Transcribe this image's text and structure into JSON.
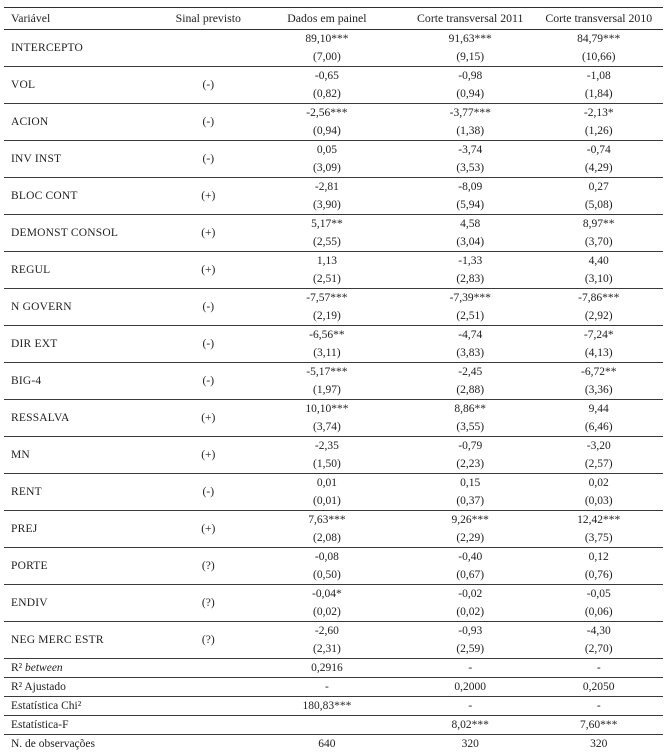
{
  "table": {
    "columns": [
      "Variável",
      "Sinal previsto",
      "Dados em painel",
      "Corte transversal 2011",
      "Corte transversal 2010"
    ],
    "variable_rows": [
      {
        "name": "INTERCEPTO",
        "sign": "",
        "cells": [
          {
            "coef": "89,10***",
            "se": "(7,00)"
          },
          {
            "coef": "91,63***",
            "se": "(9,15)"
          },
          {
            "coef": "84,79***",
            "se": "(10,66)"
          }
        ]
      },
      {
        "name": "VOL",
        "sign": "(-)",
        "cells": [
          {
            "coef": "-0,65",
            "se": "(0,82)"
          },
          {
            "coef": "-0,98",
            "se": "(0,94)"
          },
          {
            "coef": "-1,08",
            "se": "(1,84)"
          }
        ]
      },
      {
        "name": "ACION",
        "sign": "(-)",
        "cells": [
          {
            "coef": "-2,56***",
            "se": "(0,94)"
          },
          {
            "coef": "-3,77***",
            "se": "(1,38)"
          },
          {
            "coef": "-2,13*",
            "se": "(1,26)"
          }
        ]
      },
      {
        "name": "INV INST",
        "sign": "(-)",
        "cells": [
          {
            "coef": "0,05",
            "se": "(3,09)"
          },
          {
            "coef": "-3,74",
            "se": "(3,53)"
          },
          {
            "coef": "-0,74",
            "se": "(4,29)"
          }
        ]
      },
      {
        "name": "BLOC CONT",
        "sign": "(+)",
        "cells": [
          {
            "coef": "-2,81",
            "se": "(3,90)"
          },
          {
            "coef": "-8,09",
            "se": "(5,94)"
          },
          {
            "coef": "0,27",
            "se": "(5,08)"
          }
        ]
      },
      {
        "name": "DEMONST CONSOL",
        "sign": "(+)",
        "cells": [
          {
            "coef": "5,17**",
            "se": "(2,55)"
          },
          {
            "coef": "4,58",
            "se": "(3,04)"
          },
          {
            "coef": "8,97**",
            "se": "(3,70)"
          }
        ]
      },
      {
        "name": "REGUL",
        "sign": "(+)",
        "cells": [
          {
            "coef": "1,13",
            "se": "(2,51)"
          },
          {
            "coef": "-1,33",
            "se": "(2,83)"
          },
          {
            "coef": "4,40",
            "se": "(3,10)"
          }
        ]
      },
      {
        "name": "N GOVERN",
        "sign": "(-)",
        "cells": [
          {
            "coef": "-7,57***",
            "se": "(2,19)"
          },
          {
            "coef": "-7,39***",
            "se": "(2,51)"
          },
          {
            "coef": "-7,86***",
            "se": "(2,92)"
          }
        ]
      },
      {
        "name": "DIR EXT",
        "sign": "(-)",
        "cells": [
          {
            "coef": "-6,56**",
            "se": "(3,11)"
          },
          {
            "coef": "-4,74",
            "se": "(3,83)"
          },
          {
            "coef": "-7,24*",
            "se": "(4,13)"
          }
        ]
      },
      {
        "name": "BIG-4",
        "sign": "(-)",
        "cells": [
          {
            "coef": "-5,17***",
            "se": "(1,97)"
          },
          {
            "coef": "-2,45",
            "se": "(2,88)"
          },
          {
            "coef": "-6,72**",
            "se": "(3,36)"
          }
        ]
      },
      {
        "name": "RESSALVA",
        "sign": "(+)",
        "cells": [
          {
            "coef": "10,10***",
            "se": "(3,74)"
          },
          {
            "coef": "8,86**",
            "se": "(3,55)"
          },
          {
            "coef": "9,44",
            "se": "(6,46)"
          }
        ]
      },
      {
        "name": "MN",
        "sign": "(+)",
        "cells": [
          {
            "coef": "-2,35",
            "se": "(1,50)"
          },
          {
            "coef": "-0,79",
            "se": "(2,23)"
          },
          {
            "coef": "-3,20",
            "se": "(2,57)"
          }
        ]
      },
      {
        "name": "RENT",
        "sign": "(-)",
        "cells": [
          {
            "coef": "0,01",
            "se": "(0,01)"
          },
          {
            "coef": "0,15",
            "se": "(0,37)"
          },
          {
            "coef": "0,02",
            "se": "(0,03)"
          }
        ]
      },
      {
        "name": "PREJ",
        "sign": "(+)",
        "cells": [
          {
            "coef": "7,63***",
            "se": "(2,08)"
          },
          {
            "coef": "9,26***",
            "se": "(2,29)"
          },
          {
            "coef": "12,42***",
            "se": "(3,75)"
          }
        ]
      },
      {
        "name": "PORTE",
        "sign": "(?)",
        "cells": [
          {
            "coef": "-0,08",
            "se": "(0,50)"
          },
          {
            "coef": "-0,40",
            "se": "(0,67)"
          },
          {
            "coef": "0,12",
            "se": "(0,76)"
          }
        ]
      },
      {
        "name": "ENDIV",
        "sign": "(?)",
        "cells": [
          {
            "coef": "-0,04*",
            "se": "(0,02)"
          },
          {
            "coef": "-0,02",
            "se": "(0,02)"
          },
          {
            "coef": "-0,05",
            "se": "(0,06)"
          }
        ]
      },
      {
        "name": "NEG MERC ESTR",
        "sign": "(?)",
        "cells": [
          {
            "coef": "-2,60",
            "se": "(2,31)"
          },
          {
            "coef": "-0,93",
            "se": "(2,59)"
          },
          {
            "coef": "-4,30",
            "se": "(2,70)"
          }
        ]
      }
    ],
    "summary_rows": [
      {
        "label_runs": [
          {
            "text": "R² ",
            "i": false
          },
          {
            "text": "between",
            "i": true
          }
        ],
        "values": [
          "0,2916",
          "-",
          "-"
        ]
      },
      {
        "label_runs": [
          {
            "text": "R² Ajustado",
            "i": false
          }
        ],
        "values": [
          "-",
          "0,2000",
          "0,2050"
        ]
      },
      {
        "label_runs": [
          {
            "text": "Estatística Chi²",
            "i": false
          }
        ],
        "values": [
          "180,83***",
          "-",
          "-"
        ]
      },
      {
        "label_runs": [
          {
            "text": "Estatística-F",
            "i": false
          }
        ],
        "values": [
          "",
          "8,02***",
          "7,60***"
        ]
      },
      {
        "label_runs": [
          {
            "text": "N. de observações",
            "i": false
          }
        ],
        "values": [
          "640",
          "320",
          "320"
        ]
      }
    ]
  }
}
